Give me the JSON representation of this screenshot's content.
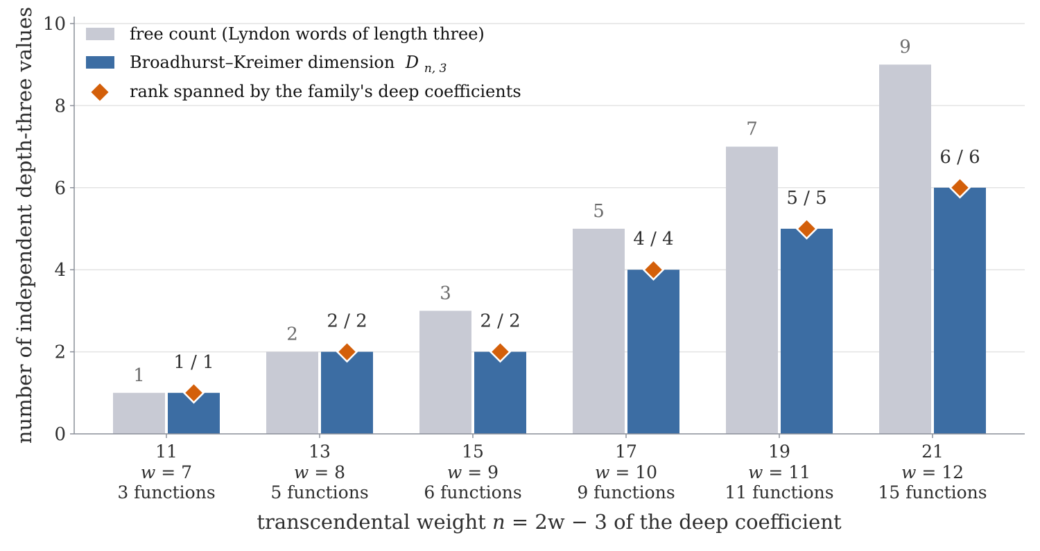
{
  "chart_data": {
    "type": "bar",
    "categories": [
      "11",
      "13",
      "15",
      "17",
      "19",
      "21"
    ],
    "category_sublabels": [
      {
        "w": "w = 7",
        "functions": "3 functions"
      },
      {
        "w": "w = 8",
        "functions": "5 functions"
      },
      {
        "w": "w = 9",
        "functions": "6 functions"
      },
      {
        "w": "w = 10",
        "functions": "9 functions"
      },
      {
        "w": "w = 11",
        "functions": "11 functions"
      },
      {
        "w": "w = 12",
        "functions": "15 functions"
      }
    ],
    "series": [
      {
        "name": "free count (Lyndon words of length three)",
        "values": [
          1,
          2,
          3,
          5,
          7,
          9
        ],
        "color": "#c8cad4",
        "labels": [
          "1",
          "2",
          "3",
          "5",
          "7",
          "9"
        ]
      },
      {
        "name": "Broadhurst–Kreimer dimension D_{n,3}",
        "values": [
          1,
          2,
          2,
          4,
          5,
          6
        ],
        "color": "#3c6da3"
      }
    ],
    "markers": {
      "name": "rank spanned by the family's deep coefficients",
      "values": [
        1,
        2,
        2,
        4,
        5,
        6
      ],
      "labels": [
        "1 / 1",
        "2 / 2",
        "2 / 2",
        "4 / 4",
        "5 / 5",
        "6 / 6"
      ],
      "color": "#d35f0a",
      "shape": "diamond"
    },
    "xlabel": "transcendental weight n = 2w − 3 of the deep coefficient",
    "ylabel": "number of independent depth-three values",
    "ylim": [
      0,
      10
    ],
    "yticks": [
      "0",
      "2",
      "4",
      "6",
      "8",
      "10"
    ],
    "grid": "horizontal",
    "legend_position": "top-left"
  },
  "legend": {
    "free": "free count (Lyndon words of length three)",
    "bk_prefix": "Broadhurst–Kreimer dimension",
    "bk_symbol": "D",
    "bk_subscript": "n, 3",
    "rank": "rank spanned by the family's deep coefficients"
  },
  "colors": {
    "free": "#c8cad4",
    "bk": "#3c6da3",
    "marker": "#d35f0a",
    "grid": "#e3e3e3",
    "axis": "#8a8f99"
  }
}
